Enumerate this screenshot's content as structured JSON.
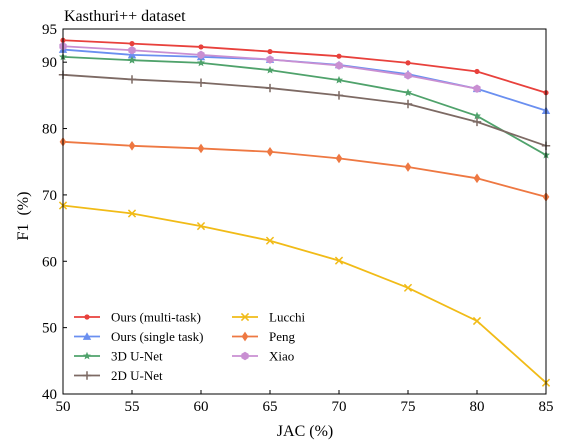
{
  "chart_data": {
    "type": "line",
    "title": "Kasthuri++ dataset",
    "xlabel": "JAC (%)",
    "ylabel": "F1  (%)",
    "xlim": [
      50,
      85
    ],
    "ylim": [
      40,
      95
    ],
    "xticks": [
      "50",
      "55",
      "60",
      "65",
      "70",
      "75",
      "80",
      "85"
    ],
    "yticks": [
      "40",
      "50",
      "60",
      "70",
      "80",
      "90",
      "95"
    ],
    "x": [
      50,
      55,
      60,
      65,
      70,
      75,
      80,
      85
    ],
    "grid": false,
    "legend_position": "lower-left",
    "series": [
      {
        "name": "Ours (multi-task)",
        "color": "#e8413c",
        "marker": "dot",
        "values": [
          93.3,
          92.8,
          92.3,
          91.6,
          90.9,
          89.9,
          88.6,
          85.4
        ]
      },
      {
        "name": "Ours (single task)",
        "color": "#6a8ff0",
        "marker": "triangle",
        "values": [
          91.9,
          91.1,
          90.8,
          90.4,
          89.6,
          88.2,
          86.0,
          82.7
        ]
      },
      {
        "name": "3D U-Net",
        "color": "#4fa26b",
        "marker": "star",
        "values": [
          90.8,
          90.3,
          89.9,
          88.8,
          87.3,
          85.4,
          81.9,
          76.0
        ]
      },
      {
        "name": "2D U-Net",
        "color": "#7d6a64",
        "marker": "plus",
        "values": [
          88.1,
          87.4,
          86.9,
          86.1,
          85.0,
          83.7,
          81.0,
          77.4
        ]
      },
      {
        "name": "Lucchi",
        "color": "#f1bb17",
        "marker": "x",
        "values": [
          68.4,
          67.2,
          65.3,
          63.1,
          60.1,
          56.0,
          51.0,
          41.7
        ]
      },
      {
        "name": "Peng",
        "color": "#ee7842",
        "marker": "diamond",
        "values": [
          78.0,
          77.4,
          77.0,
          76.5,
          75.5,
          74.2,
          72.5,
          69.7
        ]
      },
      {
        "name": "Xiao",
        "color": "#c98fd2",
        "marker": "hexagon",
        "values": [
          92.4,
          91.8,
          91.1,
          90.4,
          89.5,
          88.0,
          86.0,
          null
        ]
      }
    ]
  }
}
